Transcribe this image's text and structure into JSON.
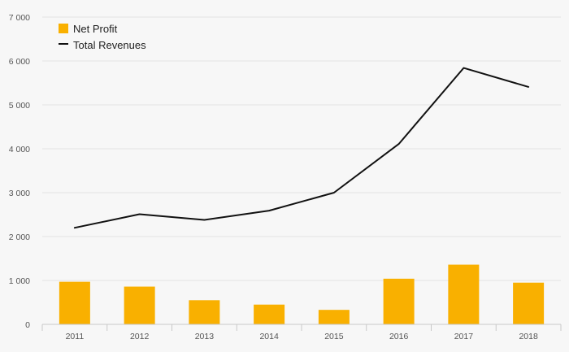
{
  "chart_data": {
    "type": "bar",
    "categories": [
      "2011",
      "2012",
      "2013",
      "2014",
      "2015",
      "2016",
      "2017",
      "2018"
    ],
    "series": [
      {
        "name": "Net Profit",
        "type": "bar",
        "values": [
          970,
          860,
          550,
          450,
          330,
          1040,
          1360,
          950
        ]
      },
      {
        "name": "Total Revenues",
        "type": "line",
        "values": [
          2200,
          2510,
          2380,
          2590,
          3000,
          4110,
          5840,
          5410
        ]
      }
    ],
    "ylim": [
      0,
      7000
    ],
    "yticks": [
      0,
      1000,
      2000,
      3000,
      4000,
      5000,
      6000,
      7000
    ],
    "ytick_labels": [
      "0",
      "1 000",
      "2 000",
      "3 000",
      "4 000",
      "5 000",
      "6 000",
      "7 000"
    ],
    "title": "",
    "xlabel": "",
    "ylabel": "",
    "grid": true,
    "legend_position": "top-left",
    "colors": {
      "bar": "#f9b000",
      "line": "#111111",
      "grid": "#e3e3e3",
      "background": "#f7f7f7",
      "text": "#555555"
    }
  }
}
